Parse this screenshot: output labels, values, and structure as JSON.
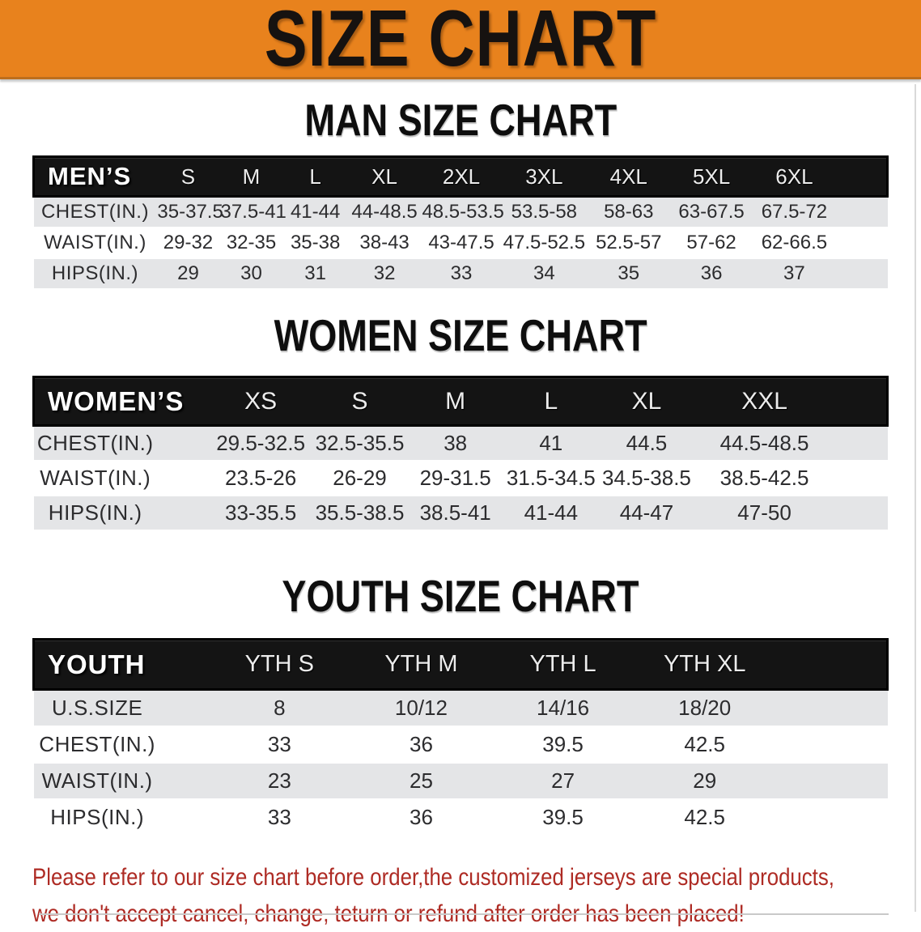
{
  "banner": {
    "title": "SIZE CHART"
  },
  "colors": {
    "banner_bg": "#e8821d",
    "header_bar_bg": "#141414",
    "shaded_row_bg": "#e4e5e7",
    "notice_text": "#ae2b24"
  },
  "sections": [
    {
      "id": "men",
      "heading": "MAN SIZE CHART",
      "table": {
        "label_header": "MEN’S",
        "size_headers": [
          "S",
          "M",
          "L",
          "XL",
          "2XL",
          "3XL",
          "4XL",
          "5XL",
          "6XL"
        ],
        "rows": [
          {
            "label": "CHEST(IN.)",
            "shaded": true,
            "values": [
              "35-37.5",
              "37.5-41",
              "41-44",
              "44-48.5",
              "48.5-53.5",
              "53.5-58",
              "58-63",
              "63-67.5",
              "67.5-72"
            ]
          },
          {
            "label": "WAIST(IN.)",
            "shaded": false,
            "values": [
              "29-32",
              "32-35",
              "35-38",
              "38-43",
              "43-47.5",
              "47.5-52.5",
              "52.5-57",
              "57-62",
              "62-66.5"
            ]
          },
          {
            "label": "HIPS(IN.)",
            "shaded": true,
            "values": [
              "29",
              "30",
              "31",
              "32",
              "33",
              "34",
              "35",
              "36",
              "37"
            ]
          }
        ]
      }
    },
    {
      "id": "women",
      "heading": "WOMEN SIZE CHART",
      "table": {
        "label_header": "WOMEN’S",
        "size_headers": [
          "XS",
          "S",
          "M",
          "L",
          "XL",
          "XXL"
        ],
        "rows": [
          {
            "label": "CHEST(IN.)",
            "shaded": true,
            "values": [
              "29.5-32.5",
              "32.5-35.5",
              "38",
              "41",
              "44.5",
              "44.5-48.5"
            ]
          },
          {
            "label": "WAIST(IN.)",
            "shaded": false,
            "values": [
              "23.5-26",
              "26-29",
              "29-31.5",
              "31.5-34.5",
              "34.5-38.5",
              "38.5-42.5"
            ]
          },
          {
            "label": "HIPS(IN.)",
            "shaded": true,
            "values": [
              "33-35.5",
              "35.5-38.5",
              "38.5-41",
              "41-44",
              "44-47",
              "47-50"
            ]
          }
        ]
      }
    },
    {
      "id": "youth",
      "heading": "YOUTH SIZE CHART",
      "table": {
        "label_header": "YOUTH",
        "size_headers": [
          "YTH S",
          "YTH M",
          "YTH L",
          "YTH XL"
        ],
        "rows": [
          {
            "label": "U.S.SIZE",
            "shaded": true,
            "values": [
              "8",
              "10/12",
              "14/16",
              "18/20"
            ]
          },
          {
            "label": "CHEST(IN.)",
            "shaded": false,
            "values": [
              "33",
              "36",
              "39.5",
              "42.5"
            ]
          },
          {
            "label": "WAIST(IN.)",
            "shaded": true,
            "values": [
              "23",
              "25",
              "27",
              "29"
            ]
          },
          {
            "label": "HIPS(IN.)",
            "shaded": false,
            "values": [
              "33",
              "36",
              "39.5",
              "42.5"
            ]
          }
        ]
      }
    }
  ],
  "footer": {
    "lines": [
      "Please refer to our size chart before order,the customized jerseys are special products,",
      "we don't accept cancel, change, teturn or refund after order has been placed!"
    ]
  }
}
